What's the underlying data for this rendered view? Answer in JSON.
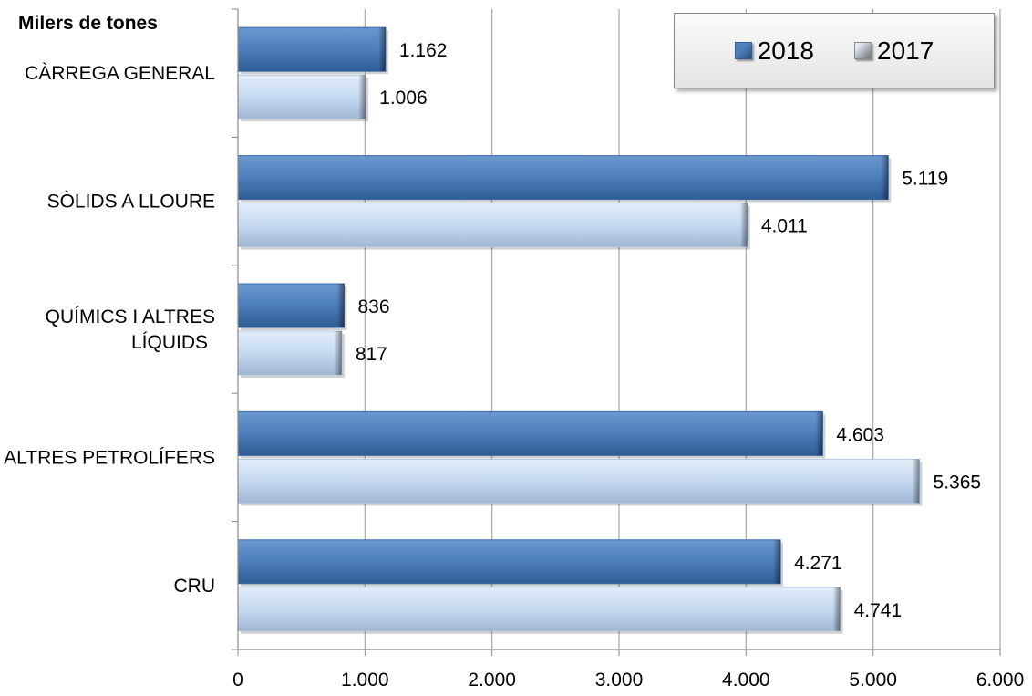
{
  "unit_label": "Milers de tones",
  "legend": [
    {
      "label": "2018",
      "color": "#4f81bd"
    },
    {
      "label": "2017",
      "color": "#c6d9f1"
    }
  ],
  "chart_data": {
    "type": "bar",
    "orientation": "horizontal",
    "categories": [
      "CÀRREGA GENERAL",
      "SÒLIDS A LLOURE",
      "QUÍMICS I ALTRES LÍQUIDS",
      "ALTRES PETROLÍFERS",
      "CRU"
    ],
    "series": [
      {
        "name": "2018",
        "values": [
          1162,
          5119,
          836,
          4603,
          4271
        ],
        "labels": [
          "1.162",
          "5.119",
          "836",
          "4.603",
          "4.271"
        ],
        "color": "#4f81bd"
      },
      {
        "name": "2017",
        "values": [
          1006,
          4011,
          817,
          5365,
          4741
        ],
        "labels": [
          "1.006",
          "4.011",
          "817",
          "5.365",
          "4.741"
        ],
        "color": "#c6d9f1"
      }
    ],
    "xlim": [
      0,
      6000
    ],
    "ticks": [
      0,
      1000,
      2000,
      3000,
      4000,
      5000,
      6000
    ],
    "tick_labels": [
      "0",
      "1.000",
      "2.000",
      "3.000",
      "4.000",
      "5.000",
      "6.000"
    ],
    "title": "",
    "xlabel": "",
    "ylabel": "Milers de tones",
    "grid": true,
    "legend_position": "top-right"
  }
}
